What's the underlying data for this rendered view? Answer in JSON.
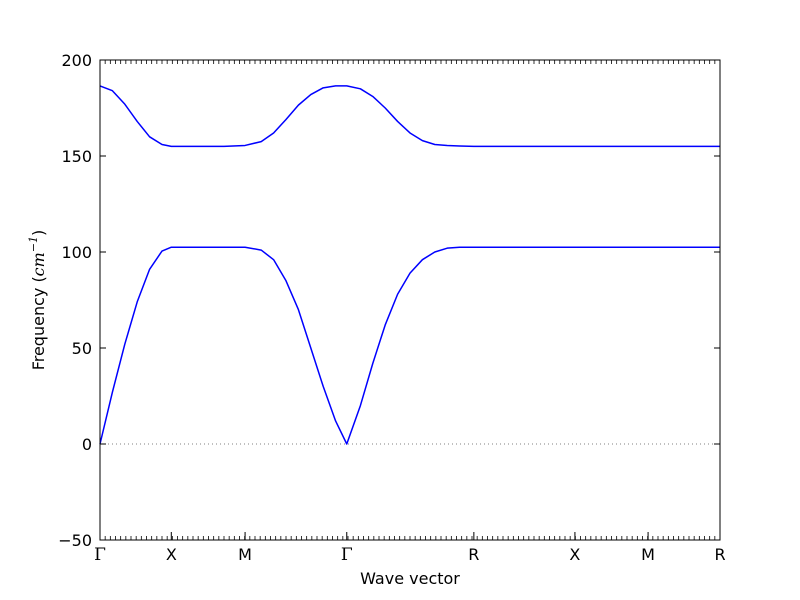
{
  "chart_data": {
    "type": "line",
    "title": "",
    "xlabel": "Wave vector",
    "ylabel_prefix": "Frequency (",
    "ylabel_unit": "cm",
    "ylabel_exponent": "−1",
    "ylabel_suffix": ")",
    "ylim": [
      -50,
      200
    ],
    "yticks": [
      -50,
      0,
      50,
      100,
      150,
      200
    ],
    "ytick_labels": [
      "−50",
      "0",
      "50",
      "100",
      "150",
      "200"
    ],
    "xlim": [
      0,
      1.0
    ],
    "xticks": [
      {
        "label": "Γ",
        "x": 0.0
      },
      {
        "label": "X",
        "x": 0.115
      },
      {
        "label": "M",
        "x": 0.234
      },
      {
        "label": "Γ",
        "x": 0.398
      },
      {
        "label": "R",
        "x": 0.603
      },
      {
        "label": "X",
        "x": 0.766
      },
      {
        "label": "M",
        "x": 0.884
      },
      {
        "label": "R",
        "x": 1.0
      }
    ],
    "zero_line": {
      "y": 0,
      "style": "dotted",
      "color": "#808080"
    },
    "series": [
      {
        "color": "#0000ff",
        "x": [
          0,
          0.02,
          0.04,
          0.06,
          0.08,
          0.1,
          0.115,
          0.15,
          0.2,
          0.234,
          0.26,
          0.28,
          0.3,
          0.32,
          0.34,
          0.36,
          0.38,
          0.398,
          0.42,
          0.44,
          0.46,
          0.48,
          0.5,
          0.52,
          0.54,
          0.56,
          0.58,
          0.603,
          0.7,
          0.766,
          0.884,
          1.0
        ],
        "y": [
          0,
          27,
          52,
          74,
          91,
          100.5,
          102.5,
          102.5,
          102.5,
          102.5,
          101,
          96,
          85,
          70,
          50,
          30,
          12,
          0,
          20,
          42,
          62,
          78,
          89,
          96,
          100,
          102,
          102.5,
          102.5,
          102.5,
          102.5,
          102.5,
          102.5
        ]
      },
      {
        "color": "#0000ff",
        "x": [
          0,
          0.02,
          0.04,
          0.06,
          0.08,
          0.1,
          0.115,
          0.15,
          0.2,
          0.234,
          0.26,
          0.28,
          0.3,
          0.32,
          0.34,
          0.36,
          0.38,
          0.398,
          0.42,
          0.44,
          0.46,
          0.48,
          0.5,
          0.52,
          0.54,
          0.56,
          0.58,
          0.603,
          0.7,
          0.766,
          0.884,
          1.0
        ],
        "y": [
          186.5,
          184,
          177,
          168,
          160,
          156,
          155,
          155,
          155,
          155.5,
          157.5,
          162,
          169,
          176.5,
          182,
          185.5,
          186.5,
          186.5,
          185,
          181,
          175,
          168,
          162,
          158,
          156,
          155.5,
          155.2,
          155,
          155,
          155,
          155,
          155
        ]
      }
    ]
  }
}
